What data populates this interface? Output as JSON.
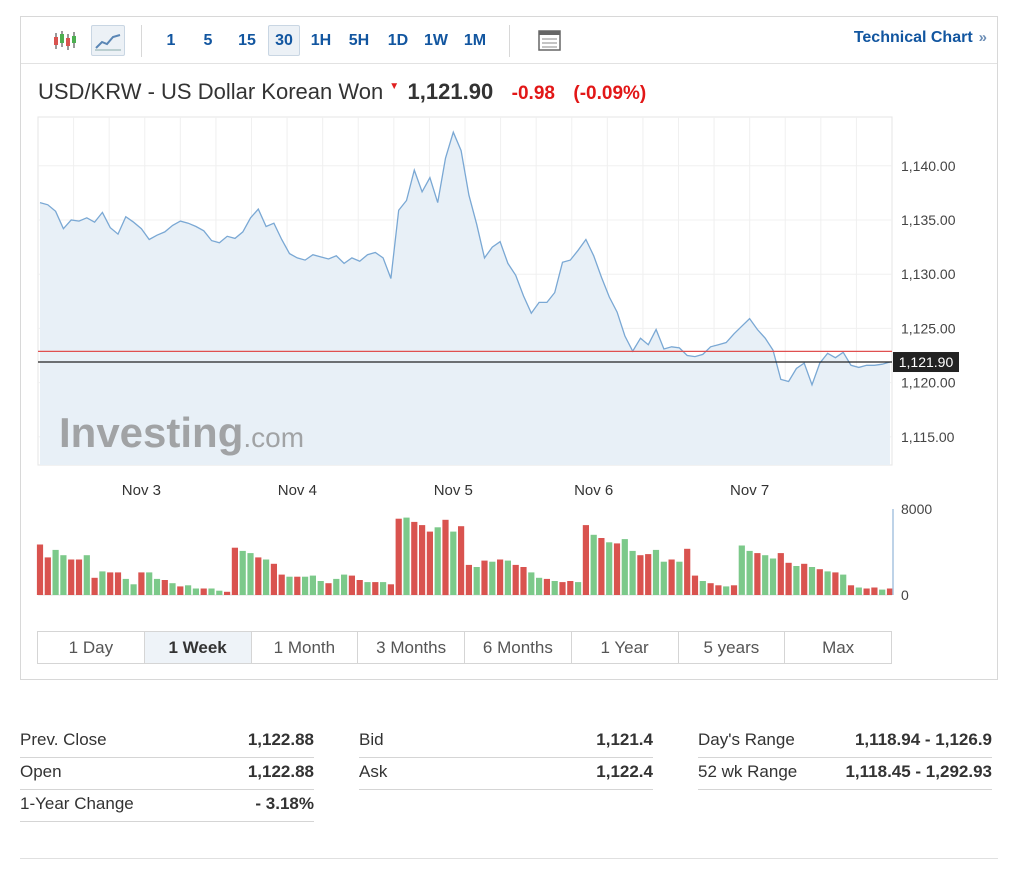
{
  "toolbar": {
    "candle_icon": "candlestick-chart-icon",
    "area_icon": "area-chart-icon",
    "intervals": [
      "1",
      "5",
      "15",
      "30",
      "1H",
      "5H",
      "1D",
      "1W",
      "1M"
    ],
    "active_interval": "30",
    "table_icon": "table-view-icon",
    "tech_link_label": "Technical Chart",
    "tech_link_arrow": "»"
  },
  "instrument": {
    "name": "USD/KRW - US Dollar Korean Won",
    "last": "1,121.90",
    "change": "-0.98",
    "change_pct": "(-0.09%)",
    "direction_icon": "down-arrow-icon"
  },
  "watermark": {
    "brand": "Investing",
    "suffix": ".com"
  },
  "colors": {
    "line": "#7aa8d4",
    "area": "#e8f0f7",
    "up_bar": "#7cc98a",
    "down_bar": "#d9534f",
    "prev_close_line": "#e05050",
    "last_line": "#222222",
    "negative": "#e21717",
    "link": "#1256a0"
  },
  "chart_data": {
    "type": "area",
    "title": "USD/KRW - US Dollar Korean Won",
    "x_labels": [
      "Nov 3",
      "Nov 4",
      "Nov 5",
      "Nov 6",
      "Nov 7"
    ],
    "x_label_index": [
      13,
      33,
      53,
      71,
      91
    ],
    "y_ticks": [
      "1,140.00",
      "1,135.00",
      "1,130.00",
      "1,125.00",
      "1,120.00",
      "1,115.00"
    ],
    "y_tick_values": [
      1140,
      1135,
      1130,
      1125,
      1120,
      1115
    ],
    "ylim": [
      1112.4,
      1144.5
    ],
    "current_price_label": "1,121.90",
    "current_price": 1121.9,
    "prev_close": 1122.88,
    "series": [
      {
        "values": [
          1136.6,
          1136.4,
          1135.8,
          1134.2,
          1135.0,
          1134.9,
          1135.2,
          1134.8,
          1135.7,
          1134.3,
          1133.7,
          1135.3,
          1134.8,
          1134.2,
          1133.2,
          1133.6,
          1133.9,
          1134.5,
          1134.9,
          1134.7,
          1134.4,
          1134.0,
          1133.1,
          1132.9,
          1133.5,
          1133.3,
          1133.9,
          1135.2,
          1136.0,
          1134.4,
          1134.7,
          1133.2,
          1131.9,
          1131.5,
          1131.3,
          1131.8,
          1131.6,
          1131.4,
          1131.7,
          1131.0,
          1131.5,
          1131.2,
          1131.8,
          1132.0,
          1131.5,
          1129.6,
          1135.9,
          1136.8,
          1139.6,
          1137.6,
          1138.9,
          1136.6,
          1140.7,
          1143.1,
          1141.4,
          1137.3,
          1134.6,
          1131.5,
          1132.5,
          1133.0,
          1131.0,
          1129.9,
          1128.0,
          1126.4,
          1127.4,
          1127.4,
          1128.3,
          1131.1,
          1131.3,
          1132.2,
          1133.2,
          1131.7,
          1129.7,
          1127.9,
          1126.5,
          1124.3,
          1122.9,
          1124.1,
          1123.5,
          1124.9,
          1123.1,
          1123.3,
          1123.2,
          1122.5,
          1122.4,
          1122.6,
          1123.3,
          1123.5,
          1123.7,
          1124.5,
          1125.2,
          1125.9,
          1124.9,
          1124.1,
          1123.0,
          1120.3,
          1120.1,
          1121.3,
          1121.8,
          1119.8,
          1121.8,
          1122.7,
          1122.3,
          1122.8,
          1121.6,
          1121.4,
          1121.6,
          1121.6,
          1121.7,
          1121.9
        ]
      }
    ],
    "volume": {
      "ylim": [
        0,
        8000
      ],
      "y_ticks": [
        "8000",
        "0"
      ],
      "y_tick_values": [
        8000,
        0
      ],
      "values": [
        4700,
        3500,
        4200,
        3700,
        3300,
        3300,
        3700,
        1600,
        2200,
        2100,
        2100,
        1500,
        1000,
        2100,
        2100,
        1500,
        1400,
        1100,
        800,
        900,
        600,
        600,
        600,
        400,
        300,
        4400,
        4100,
        3900,
        3500,
        3300,
        2900,
        1900,
        1700,
        1700,
        1700,
        1800,
        1300,
        1100,
        1500,
        1900,
        1800,
        1400,
        1200,
        1200,
        1200,
        1000,
        7100,
        7200,
        6800,
        6500,
        5900,
        6300,
        7000,
        5900,
        6400,
        2800,
        2600,
        3200,
        3100,
        3300,
        3200,
        2800,
        2600,
        2100,
        1600,
        1500,
        1300,
        1200,
        1300,
        1200,
        6500,
        5600,
        5300,
        4900,
        4800,
        5200,
        4100,
        3700,
        3800,
        4200,
        3100,
        3300,
        3100,
        4300,
        1800,
        1300,
        1100,
        900,
        800,
        900,
        4600,
        4100,
        3900,
        3700,
        3400,
        3900,
        3000,
        2700,
        2900,
        2600,
        2400,
        2200,
        2100,
        1900,
        900,
        700,
        600,
        700,
        500,
        600
      ],
      "direction": [
        -1,
        -1,
        1,
        1,
        -1,
        -1,
        1,
        -1,
        1,
        -1,
        -1,
        1,
        1,
        -1,
        1,
        1,
        -1,
        1,
        -1,
        1,
        1,
        -1,
        1,
        1,
        -1,
        -1,
        1,
        1,
        -1,
        1,
        -1,
        -1,
        1,
        -1,
        1,
        1,
        1,
        -1,
        1,
        1,
        -1,
        -1,
        1,
        -1,
        1,
        -1,
        -1,
        1,
        -1,
        -1,
        -1,
        1,
        -1,
        1,
        -1,
        -1,
        1,
        -1,
        1,
        -1,
        1,
        -1,
        -1,
        1,
        1,
        -1,
        1,
        -1,
        -1,
        1,
        -1,
        1,
        -1,
        1,
        -1,
        1,
        1,
        -1,
        -1,
        1,
        1,
        -1,
        1,
        -1,
        -1,
        1,
        -1,
        -1,
        1,
        -1,
        1,
        1,
        -1,
        1,
        1,
        -1,
        -1,
        1,
        -1,
        1,
        -1,
        1,
        -1,
        1,
        -1,
        1,
        -1,
        -1,
        1,
        -1
      ]
    }
  },
  "range_tabs": [
    "1 Day",
    "1 Week",
    "1 Month",
    "3 Months",
    "6 Months",
    "1 Year",
    "5 years",
    "Max"
  ],
  "active_range": "1 Week",
  "stats": [
    [
      {
        "label": "Prev. Close",
        "value": "1,122.88"
      },
      {
        "label": "Open",
        "value": "1,122.88"
      },
      {
        "label": "1-Year Change",
        "value": "- 3.18%"
      }
    ],
    [
      {
        "label": "Bid",
        "value": "1,121.4"
      },
      {
        "label": "Ask",
        "value": "1,122.4"
      }
    ],
    [
      {
        "label": "Day's Range",
        "value": "1,118.94 - 1,126.9"
      },
      {
        "label": "52 wk Range",
        "value": "1,118.45 - 1,292.93"
      }
    ]
  ]
}
